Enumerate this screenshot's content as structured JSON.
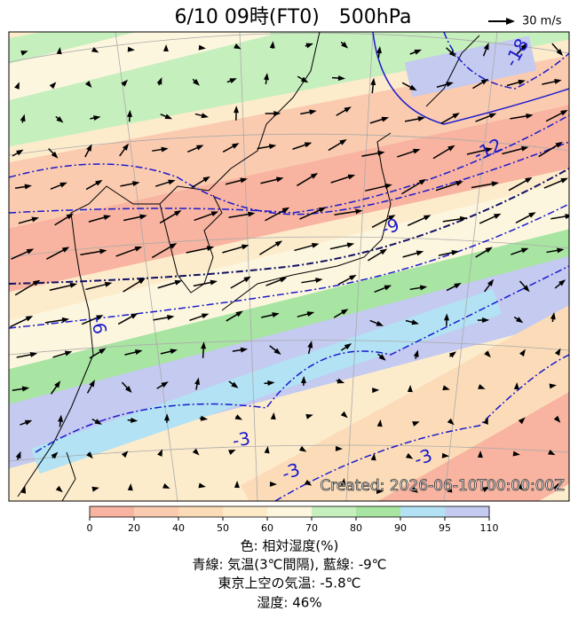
{
  "header": {
    "title": "6/10 09時(FT0)　500hPa",
    "wind_scale_label": "30 m/s"
  },
  "map": {
    "created": "Created: 2026-06-10T00:00:00Z",
    "contour_labels": [
      "-18",
      "-12",
      "-9",
      "-6",
      "-3",
      "-3",
      "-3"
    ]
  },
  "colorbar": {
    "ticks": [
      0,
      20,
      40,
      50,
      60,
      70,
      80,
      90,
      95,
      110
    ],
    "colors": [
      "#f8b4a0",
      "#fbcbb0",
      "#fcdcb8",
      "#fdebc8",
      "#fdf6de",
      "#c6efbe",
      "#a8e4a2",
      "#b2e2f4",
      "#c4caf0"
    ]
  },
  "caption": [
    "色: 相対湿度(%)",
    "青線: 気温(3℃間隔), 藍線: -9℃",
    "東京上空の気温: -5.8℃",
    "湿度: 46%"
  ]
}
